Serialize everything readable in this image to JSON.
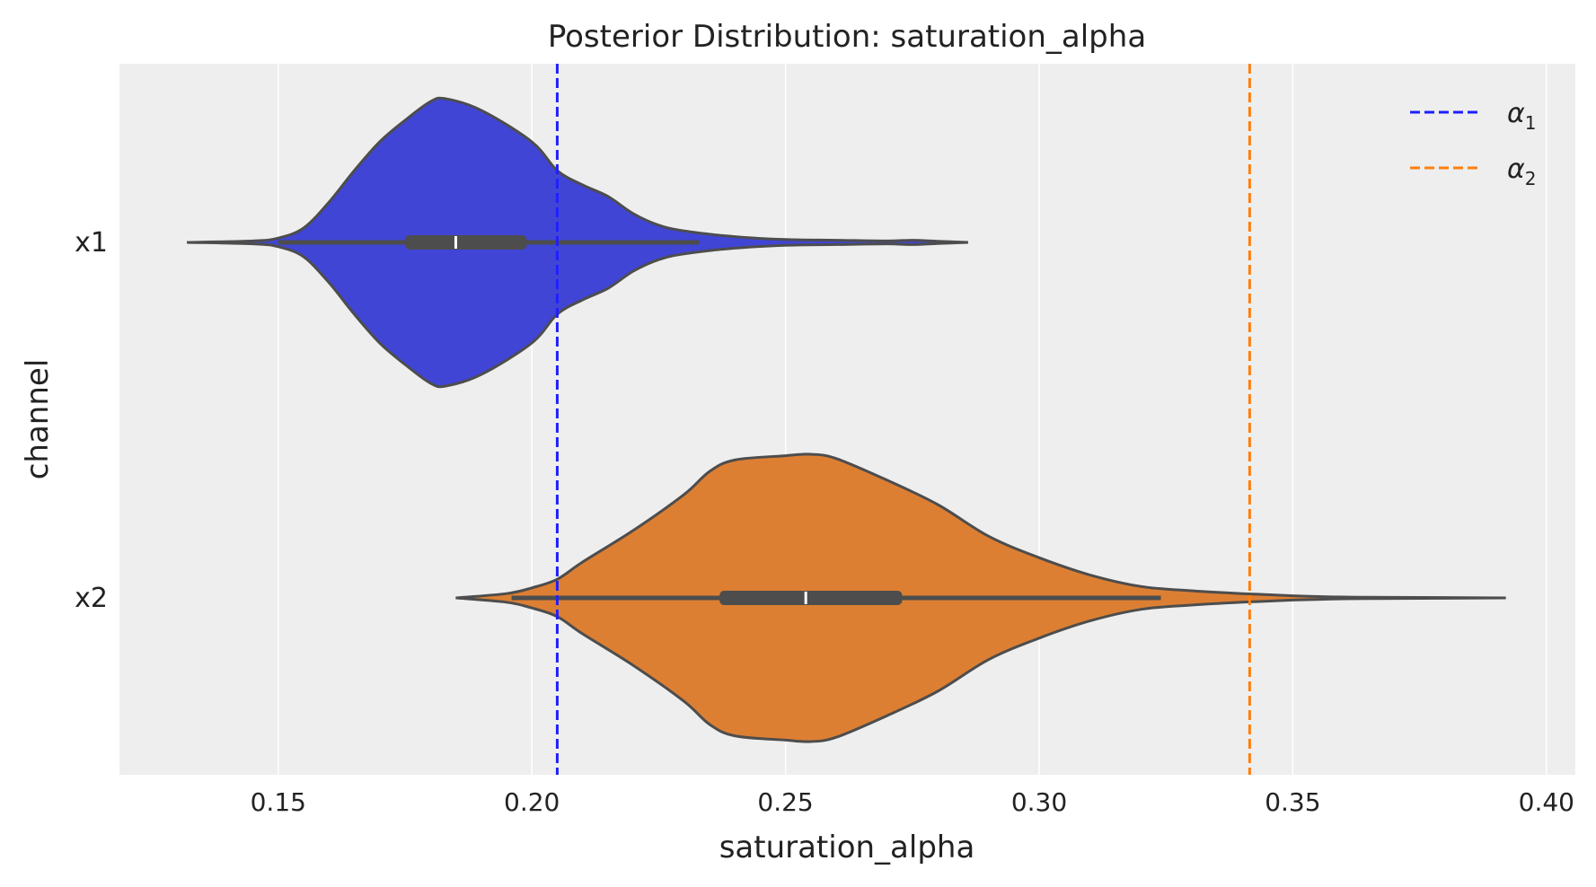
{
  "chart_data": {
    "type": "violin",
    "title": "Posterior Distribution: saturation_alpha",
    "xlabel": "saturation_alpha",
    "ylabel": "channel",
    "xlim": [
      0.1187,
      0.4057
    ],
    "xticks": [
      "0.15",
      "0.20",
      "0.25",
      "0.30",
      "0.35",
      "0.40"
    ],
    "grid": true,
    "background": "#eeeeee",
    "legend_placement": "top-right",
    "categories": [
      "x1",
      "x2"
    ],
    "violins": [
      {
        "category": "x1",
        "color": "#4045d6",
        "min": 0.132,
        "max": 0.286,
        "q1": 0.175,
        "median": 0.185,
        "q3": 0.199,
        "whisker_low": 0.15,
        "whisker_high": 0.233,
        "density": [
          [
            0.132,
            0
          ],
          [
            0.145,
            0.01
          ],
          [
            0.15,
            0.03
          ],
          [
            0.155,
            0.1
          ],
          [
            0.16,
            0.28
          ],
          [
            0.165,
            0.5
          ],
          [
            0.17,
            0.7
          ],
          [
            0.175,
            0.85
          ],
          [
            0.18,
            0.98
          ],
          [
            0.183,
            1.0
          ],
          [
            0.19,
            0.92
          ],
          [
            0.2,
            0.7
          ],
          [
            0.205,
            0.5
          ],
          [
            0.21,
            0.4
          ],
          [
            0.215,
            0.32
          ],
          [
            0.22,
            0.2
          ],
          [
            0.225,
            0.12
          ],
          [
            0.23,
            0.08
          ],
          [
            0.24,
            0.04
          ],
          [
            0.25,
            0.02
          ],
          [
            0.26,
            0.015
          ],
          [
            0.27,
            0.01
          ],
          [
            0.275,
            0.015
          ],
          [
            0.28,
            0.008
          ],
          [
            0.286,
            0
          ]
        ]
      },
      {
        "category": "x2",
        "color": "#dd7f33",
        "min": 0.185,
        "max": 0.392,
        "q1": 0.237,
        "median": 0.254,
        "q3": 0.273,
        "whisker_low": 0.196,
        "whisker_high": 0.324,
        "density": [
          [
            0.185,
            0
          ],
          [
            0.195,
            0.03
          ],
          [
            0.2,
            0.07
          ],
          [
            0.205,
            0.13
          ],
          [
            0.21,
            0.25
          ],
          [
            0.22,
            0.47
          ],
          [
            0.23,
            0.72
          ],
          [
            0.235,
            0.88
          ],
          [
            0.24,
            0.96
          ],
          [
            0.25,
            0.99
          ],
          [
            0.255,
            1.0
          ],
          [
            0.26,
            0.97
          ],
          [
            0.27,
            0.82
          ],
          [
            0.28,
            0.65
          ],
          [
            0.29,
            0.43
          ],
          [
            0.3,
            0.28
          ],
          [
            0.31,
            0.16
          ],
          [
            0.32,
            0.08
          ],
          [
            0.33,
            0.05
          ],
          [
            0.34,
            0.03
          ],
          [
            0.35,
            0.015
          ],
          [
            0.36,
            0.006
          ],
          [
            0.37,
            0.004
          ],
          [
            0.392,
            0
          ]
        ]
      }
    ],
    "reference_lines": [
      {
        "name": "α1",
        "sub": "1",
        "value": 0.205,
        "color": "#1f1fff",
        "style": "dashed"
      },
      {
        "name": "α2",
        "sub": "2",
        "value": 0.3415,
        "color": "#ff7f0e",
        "style": "dashed"
      }
    ]
  }
}
